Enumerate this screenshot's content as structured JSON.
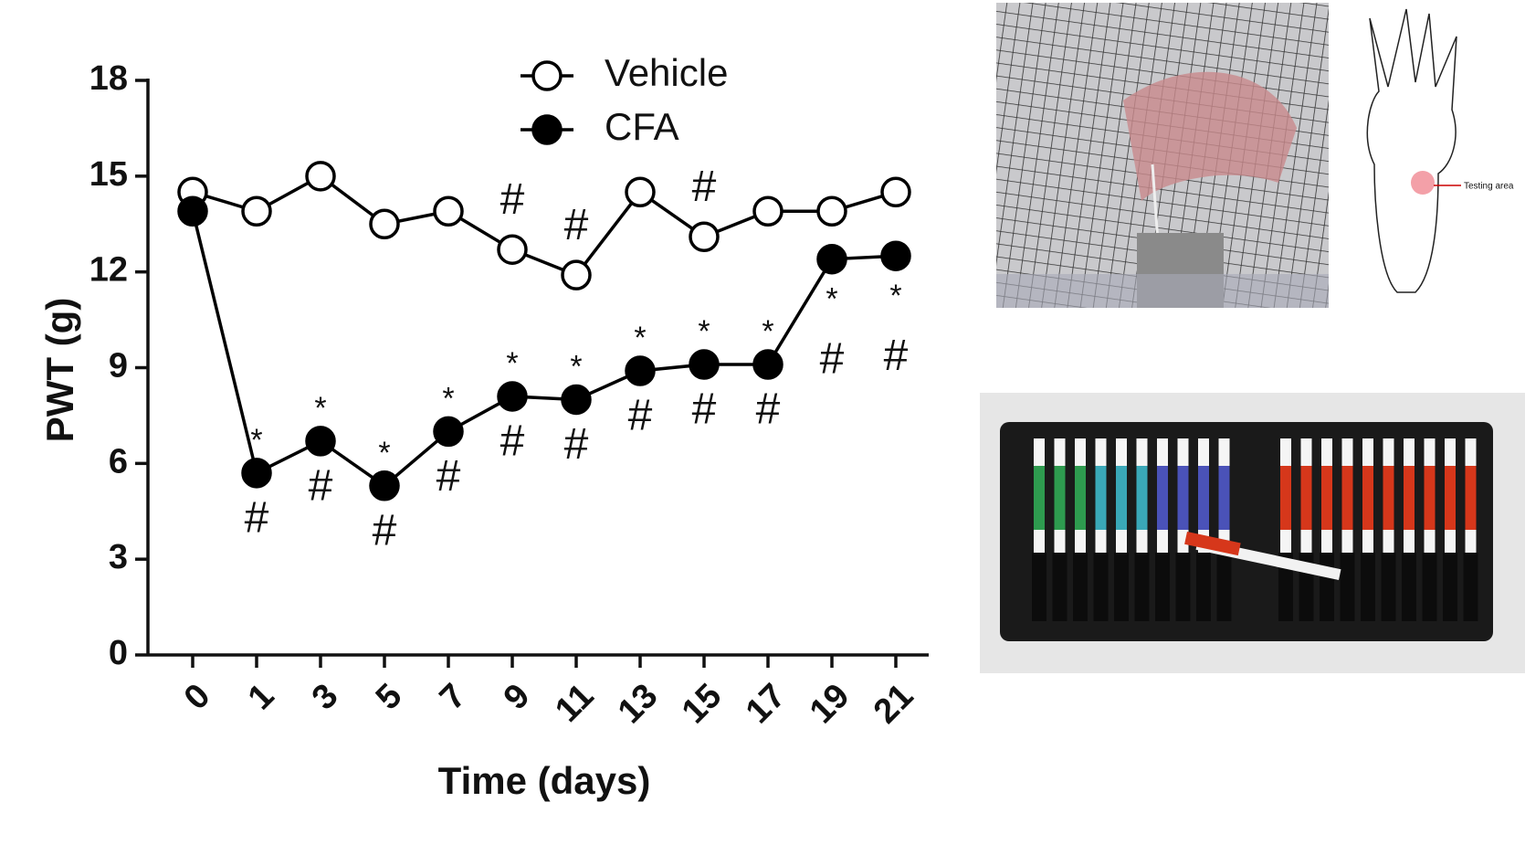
{
  "chart_data": {
    "type": "line",
    "x_label": "Time (days)",
    "y_label": "PWT (g)",
    "categories": [
      "0",
      "1",
      "3",
      "5",
      "7",
      "9",
      "11",
      "13",
      "15",
      "17",
      "19",
      "21"
    ],
    "series": [
      {
        "name": "Vehicle",
        "color": "#000000",
        "marker_fill": "#ffffff",
        "values": [
          14.5,
          13.9,
          15.0,
          13.5,
          13.9,
          12.7,
          11.9,
          14.5,
          13.1,
          13.9,
          13.9,
          14.5
        ]
      },
      {
        "name": "CFA",
        "color": "#000000",
        "marker_fill": "#000000",
        "values": [
          13.9,
          5.7,
          6.7,
          5.3,
          7.0,
          8.1,
          8.0,
          8.9,
          9.1,
          9.1,
          12.4,
          12.5
        ]
      }
    ],
    "ylim": [
      0,
      18
    ],
    "yticks": [
      0,
      3,
      6,
      9,
      12,
      15,
      18
    ],
    "legend": "top",
    "annotations": [
      {
        "series": 0,
        "index": 5,
        "text": "#",
        "position": "above"
      },
      {
        "series": 0,
        "index": 6,
        "text": "#",
        "position": "above"
      },
      {
        "series": 0,
        "index": 8,
        "text": "#",
        "position": "above"
      },
      {
        "series": 1,
        "index": 1,
        "text": "*",
        "position": "above"
      },
      {
        "series": 1,
        "index": 1,
        "text": "#",
        "position": "below"
      },
      {
        "series": 1,
        "index": 2,
        "text": "*",
        "position": "above"
      },
      {
        "series": 1,
        "index": 2,
        "text": "#",
        "position": "below"
      },
      {
        "series": 1,
        "index": 3,
        "text": "*",
        "position": "above"
      },
      {
        "series": 1,
        "index": 3,
        "text": "#",
        "position": "below"
      },
      {
        "series": 1,
        "index": 4,
        "text": "*",
        "position": "above"
      },
      {
        "series": 1,
        "index": 4,
        "text": "#",
        "position": "below"
      },
      {
        "series": 1,
        "index": 5,
        "text": "*",
        "position": "above"
      },
      {
        "series": 1,
        "index": 5,
        "text": "#",
        "position": "below"
      },
      {
        "series": 1,
        "index": 6,
        "text": "*",
        "position": "above"
      },
      {
        "series": 1,
        "index": 6,
        "text": "#",
        "position": "below"
      },
      {
        "series": 1,
        "index": 7,
        "text": "*",
        "position": "above"
      },
      {
        "series": 1,
        "index": 7,
        "text": "#",
        "position": "below"
      },
      {
        "series": 1,
        "index": 8,
        "text": "*",
        "position": "above"
      },
      {
        "series": 1,
        "index": 8,
        "text": "#",
        "position": "below"
      },
      {
        "series": 1,
        "index": 9,
        "text": "*",
        "position": "above"
      },
      {
        "series": 1,
        "index": 9,
        "text": "#",
        "position": "below"
      },
      {
        "series": 1,
        "index": 10,
        "text": "*",
        "position": "below"
      },
      {
        "series": 1,
        "index": 10,
        "text": "#",
        "position": "below"
      },
      {
        "series": 1,
        "index": 11,
        "text": "*",
        "position": "below"
      },
      {
        "series": 1,
        "index": 11,
        "text": "#",
        "position": "below"
      }
    ]
  },
  "paw_diagram": {
    "label": "Testing area"
  }
}
